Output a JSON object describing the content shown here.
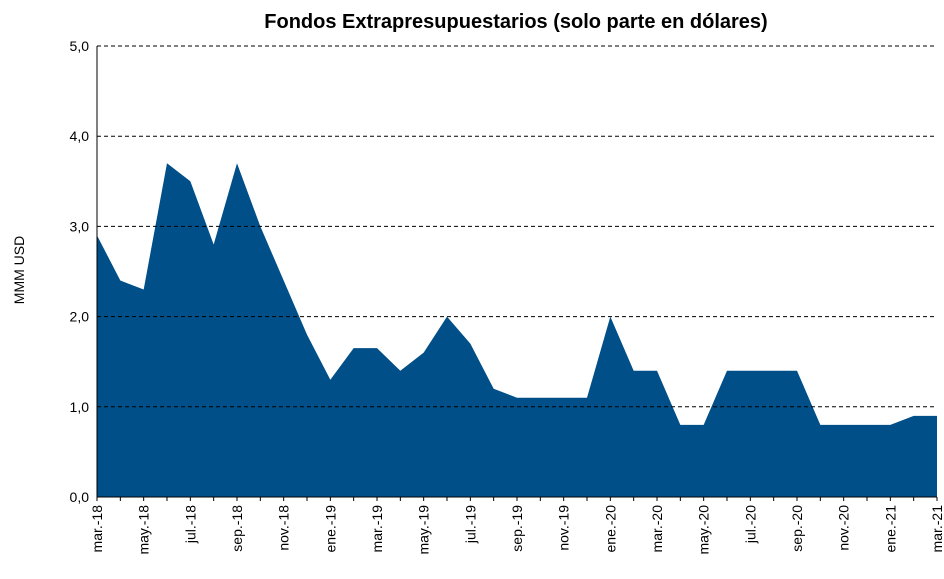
{
  "chart_data": {
    "type": "area",
    "title": "Fondos Extrapresupuestarios (solo parte en dólares)",
    "y_label": "MMM USD",
    "categories": [
      "mar.-18",
      null,
      "may.-18",
      null,
      "jul.-18",
      null,
      "sep.-18",
      null,
      "nov.-18",
      null,
      "ene.-19",
      null,
      "mar.-19",
      null,
      "may.-19",
      null,
      "jul.-19",
      null,
      "sep.-19",
      null,
      "nov.-19",
      null,
      "ene.-20",
      null,
      "mar.-20",
      null,
      "may.-20",
      null,
      "jul.-20",
      null,
      "sep.-20",
      null,
      "nov.-20",
      null,
      "ene.-21",
      null,
      "mar.-21"
    ],
    "values": [
      2.9,
      2.4,
      2.3,
      3.7,
      3.5,
      2.8,
      3.7,
      3.0,
      2.4,
      1.8,
      1.3,
      1.65,
      1.65,
      1.4,
      1.6,
      2.0,
      1.7,
      1.2,
      1.1,
      1.1,
      1.1,
      1.1,
      2.0,
      1.4,
      1.4,
      0.8,
      0.8,
      1.4,
      1.4,
      1.4,
      1.4,
      0.8,
      0.8,
      0.8,
      0.8,
      0.9,
      0.9
    ],
    "color": "#004f88",
    "ylim": [
      0,
      5
    ],
    "yticks": [
      {
        "value": 0,
        "label": "0,0"
      },
      {
        "value": 1,
        "label": "1,0"
      },
      {
        "value": 2,
        "label": "2,0"
      },
      {
        "value": 3,
        "label": "3,0"
      },
      {
        "value": 4,
        "label": "4,0"
      },
      {
        "value": 5,
        "label": "5,0"
      }
    ],
    "grid": true
  }
}
